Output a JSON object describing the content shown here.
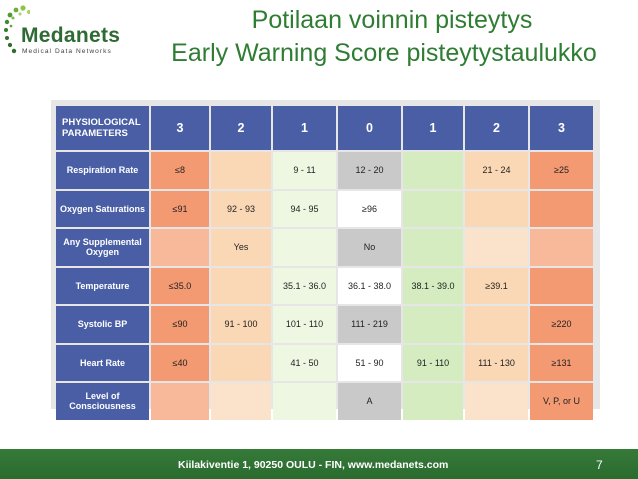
{
  "logo": {
    "name": "Medanets",
    "subtitle": "Medical Data Networks"
  },
  "title": {
    "line1": "Potilaan voinnin pisteytys",
    "line2": "Early Warning Score pisteytystaulukko"
  },
  "table": {
    "param_header": "PHYSIOLOGICAL PARAMETERS",
    "score_headers": [
      "3",
      "2",
      "1",
      "0",
      "1",
      "2",
      "3"
    ],
    "rows": [
      {
        "parameter": "Respiration Rate",
        "cells": [
          "≤8",
          "",
          "9 - 11",
          "12 - 20",
          "",
          "21 - 24",
          "≥25"
        ]
      },
      {
        "parameter": "Oxygen Saturations",
        "cells": [
          "≤91",
          "92 - 93",
          "94 - 95",
          "≥96",
          "",
          "",
          ""
        ]
      },
      {
        "parameter": "Any Supplemental Oxygen",
        "cells": [
          "",
          "Yes",
          "",
          "No",
          "",
          "",
          ""
        ]
      },
      {
        "parameter": "Temperature",
        "cells": [
          "≤35.0",
          "",
          "35.1 - 36.0",
          "36.1 - 38.0",
          "38.1 - 39.0",
          "≥39.1",
          ""
        ]
      },
      {
        "parameter": "Systolic BP",
        "cells": [
          "≤90",
          "91 - 100",
          "101 - 110",
          "111 - 219",
          "",
          "",
          "≥220"
        ]
      },
      {
        "parameter": "Heart Rate",
        "cells": [
          "≤40",
          "",
          "41 - 50",
          "51 - 90",
          "91 - 110",
          "111 - 130",
          "≥131"
        ]
      },
      {
        "parameter": "Level of Consciousness",
        "cells": [
          "",
          "",
          "",
          "A",
          "",
          "",
          "V, P, or U"
        ]
      }
    ]
  },
  "footer": {
    "address": "Kiilakiventie 1, 90250 OULU - FIN, www.medanets.com",
    "page_number": "7"
  },
  "colors": {
    "title": "#2e7d32",
    "header_blue": "#4a5ea5",
    "score3": "#f39a72",
    "score2": "#fbd8b5",
    "score1": "#eef7e2",
    "score0": "#c9c9c9",
    "footer_green": "#2a6b2e"
  }
}
